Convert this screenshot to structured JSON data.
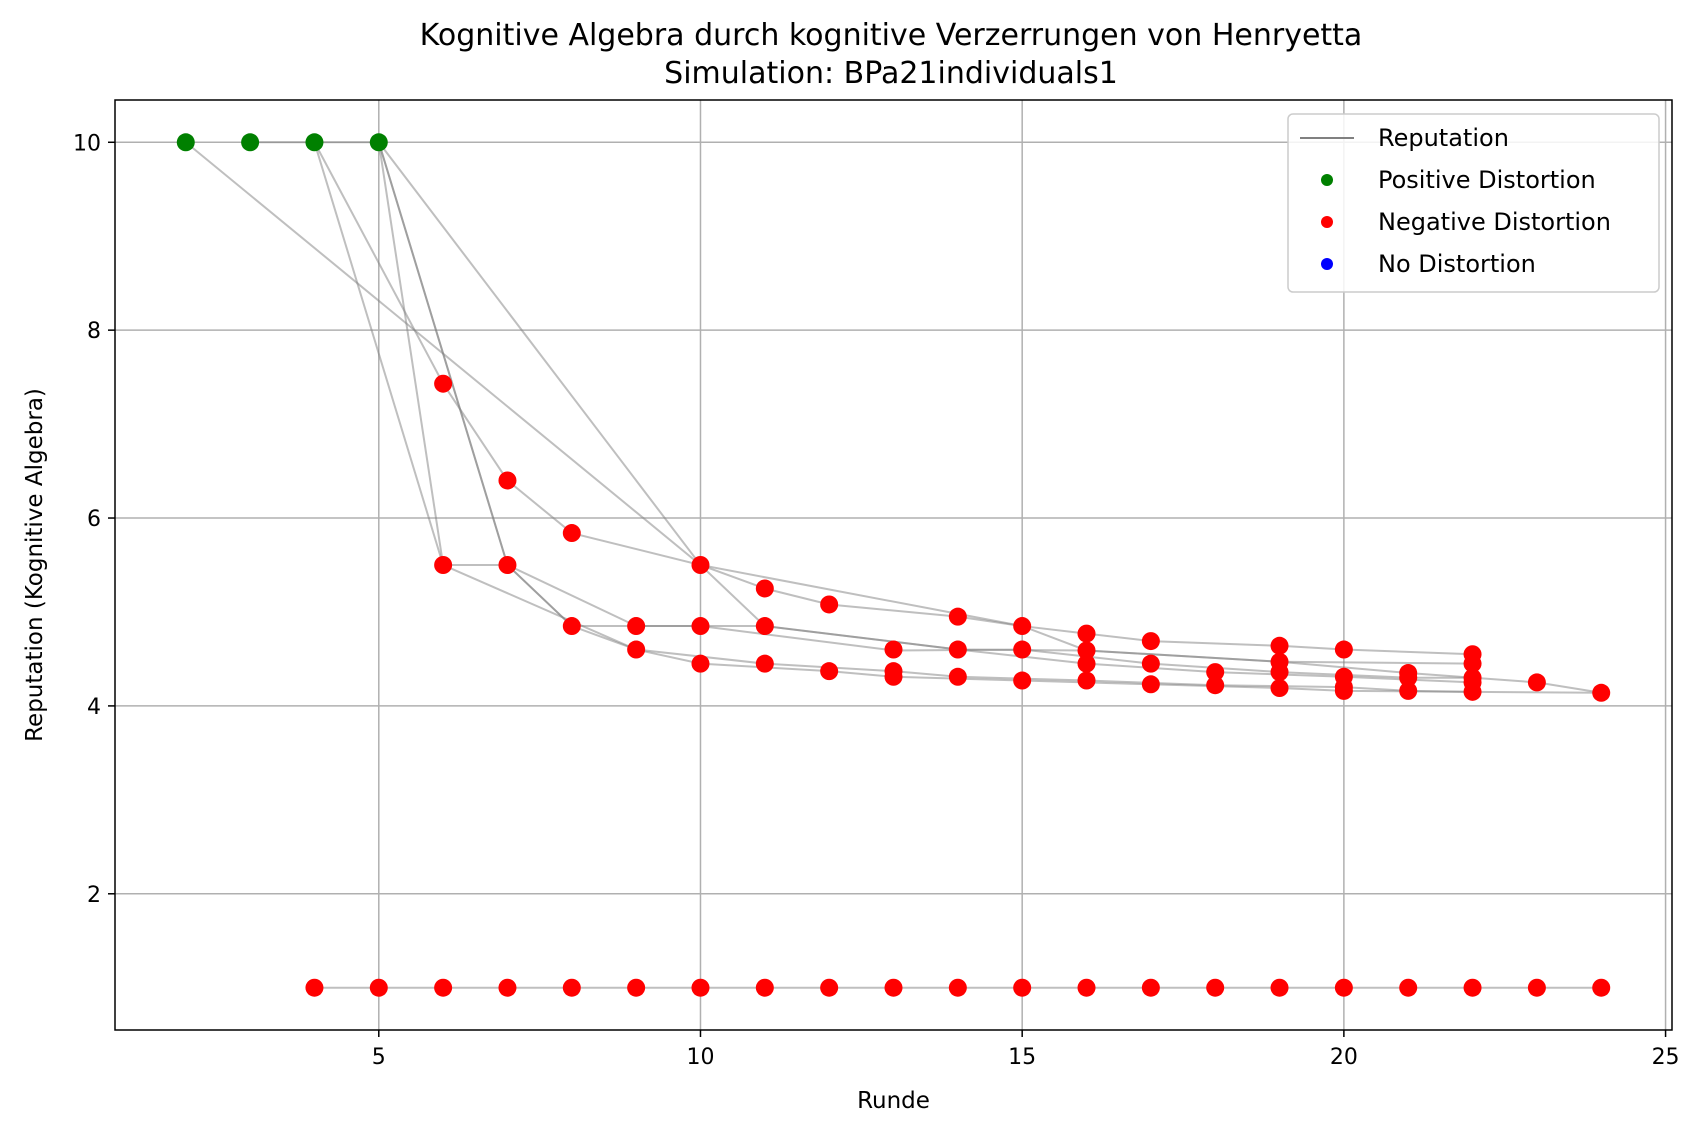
{
  "chart_data": {
    "type": "scatter",
    "title": "Kognitive Algebra durch kognitive Verzerrungen von Henryetta",
    "subtitle": "Simulation: BPa21individuals1",
    "xlabel": "Runde",
    "ylabel": "Reputation (Kognitive Algebra)",
    "xlim": [
      0.9,
      25.1
    ],
    "ylim": [
      0.55,
      10.45
    ],
    "xticks": [
      5,
      10,
      15,
      20,
      25
    ],
    "yticks": [
      2,
      4,
      6,
      8,
      10
    ],
    "grid": true,
    "legend_position": "top-right",
    "legend": [
      {
        "label": "Reputation",
        "kind": "line",
        "color": "#808080"
      },
      {
        "label": "Positive Distortion",
        "kind": "marker",
        "color": "#008000"
      },
      {
        "label": "Negative Distortion",
        "kind": "marker",
        "color": "#ff0000"
      },
      {
        "label": "No Distortion",
        "kind": "marker",
        "color": "#0000ff"
      }
    ],
    "colors": {
      "positive": "#008000",
      "negative": "#ff0000",
      "none": "#0000ff",
      "line": "#808080"
    },
    "reputation_lines": [
      [
        [
          2,
          10
        ],
        [
          10,
          5.5
        ],
        [
          11,
          5.25
        ],
        [
          12,
          5.08
        ],
        [
          14,
          4.95
        ],
        [
          15,
          4.85
        ],
        [
          16,
          4.77
        ],
        [
          17,
          4.69
        ],
        [
          19,
          4.64
        ],
        [
          20,
          4.6
        ],
        [
          22,
          4.55
        ]
      ],
      [
        [
          3,
          10
        ],
        [
          4,
          10
        ],
        [
          5,
          10
        ],
        [
          10,
          5.5
        ],
        [
          15,
          4.85
        ],
        [
          16,
          4.59
        ],
        [
          19,
          4.47
        ],
        [
          22,
          4.45
        ]
      ],
      [
        [
          4,
          10
        ],
        [
          6,
          7.43
        ],
        [
          7,
          6.4
        ],
        [
          8,
          5.84
        ],
        [
          10,
          5.5
        ],
        [
          11,
          4.85
        ],
        [
          14,
          4.6
        ],
        [
          16,
          4.45
        ],
        [
          18,
          4.36
        ],
        [
          20,
          4.31
        ],
        [
          21,
          4.28
        ],
        [
          22,
          4.25
        ]
      ],
      [
        [
          4,
          10
        ],
        [
          6,
          5.5
        ],
        [
          7,
          5.5
        ],
        [
          8,
          4.85
        ],
        [
          10,
          4.85
        ],
        [
          13,
          4.59
        ],
        [
          15,
          4.6
        ],
        [
          17,
          4.45
        ],
        [
          19,
          4.36
        ],
        [
          21,
          4.3
        ],
        [
          22,
          4.3
        ]
      ],
      [
        [
          5,
          10
        ],
        [
          7,
          5.5
        ],
        [
          9,
          4.85
        ],
        [
          11,
          4.85
        ],
        [
          14,
          4.6
        ],
        [
          16,
          4.59
        ],
        [
          19,
          4.47
        ],
        [
          21,
          4.35
        ],
        [
          23,
          4.25
        ],
        [
          24,
          4.14
        ]
      ],
      [
        [
          5,
          10
        ],
        [
          6,
          5.5
        ],
        [
          9,
          4.6
        ],
        [
          10,
          4.45
        ],
        [
          12,
          4.37
        ],
        [
          13,
          4.31
        ],
        [
          15,
          4.27
        ],
        [
          17,
          4.23
        ],
        [
          19,
          4.19
        ],
        [
          20,
          4.16
        ],
        [
          22,
          4.15
        ],
        [
          24,
          4.14
        ]
      ],
      [
        [
          5,
          10
        ],
        [
          7,
          5.5
        ],
        [
          8,
          4.85
        ],
        [
          9,
          4.6
        ],
        [
          11,
          4.45
        ],
        [
          13,
          4.37
        ],
        [
          14,
          4.31
        ],
        [
          16,
          4.27
        ],
        [
          18,
          4.22
        ],
        [
          20,
          4.2
        ],
        [
          21,
          4.16
        ],
        [
          22,
          4.15
        ]
      ],
      [
        [
          4,
          1
        ],
        [
          24,
          1
        ]
      ]
    ],
    "positive_points": [
      [
        2,
        10
      ],
      [
        3,
        10
      ],
      [
        4,
        10
      ],
      [
        5,
        10
      ]
    ],
    "negative_points": [
      [
        6,
        7.43
      ],
      [
        7,
        6.4
      ],
      [
        8,
        5.84
      ],
      [
        6,
        5.5
      ],
      [
        7,
        5.5
      ],
      [
        10,
        5.5
      ],
      [
        11,
        5.25
      ],
      [
        12,
        5.08
      ],
      [
        14,
        4.95
      ],
      [
        15,
        4.85
      ],
      [
        16,
        4.77
      ],
      [
        17,
        4.69
      ],
      [
        19,
        4.64
      ],
      [
        20,
        4.6
      ],
      [
        22,
        4.55
      ],
      [
        8,
        4.85
      ],
      [
        9,
        4.85
      ],
      [
        10,
        4.85
      ],
      [
        11,
        4.85
      ],
      [
        9,
        4.6
      ],
      [
        13,
        4.6
      ],
      [
        14,
        4.6
      ],
      [
        15,
        4.6
      ],
      [
        16,
        4.59
      ],
      [
        10,
        4.45
      ],
      [
        11,
        4.45
      ],
      [
        12,
        4.37
      ],
      [
        13,
        4.37
      ],
      [
        13,
        4.31
      ],
      [
        14,
        4.31
      ],
      [
        15,
        4.27
      ],
      [
        16,
        4.27
      ],
      [
        16,
        4.45
      ],
      [
        17,
        4.45
      ],
      [
        17,
        4.23
      ],
      [
        18,
        4.36
      ],
      [
        18,
        4.22
      ],
      [
        19,
        4.47
      ],
      [
        19,
        4.36
      ],
      [
        19,
        4.19
      ],
      [
        20,
        4.31
      ],
      [
        20,
        4.2
      ],
      [
        20,
        4.16
      ],
      [
        21,
        4.35
      ],
      [
        21,
        4.3
      ],
      [
        21,
        4.16
      ],
      [
        22,
        4.45
      ],
      [
        22,
        4.3
      ],
      [
        22,
        4.25
      ],
      [
        22,
        4.15
      ],
      [
        23,
        4.25
      ],
      [
        24,
        4.14
      ],
      [
        4,
        1
      ],
      [
        5,
        1
      ],
      [
        6,
        1
      ],
      [
        7,
        1
      ],
      [
        8,
        1
      ],
      [
        9,
        1
      ],
      [
        10,
        1
      ],
      [
        11,
        1
      ],
      [
        12,
        1
      ],
      [
        13,
        1
      ],
      [
        14,
        1
      ],
      [
        15,
        1
      ],
      [
        16,
        1
      ],
      [
        17,
        1
      ],
      [
        18,
        1
      ],
      [
        19,
        1
      ],
      [
        20,
        1
      ],
      [
        21,
        1
      ],
      [
        22,
        1
      ],
      [
        23,
        1
      ],
      [
        24,
        1
      ]
    ],
    "no_distortion_points": []
  }
}
